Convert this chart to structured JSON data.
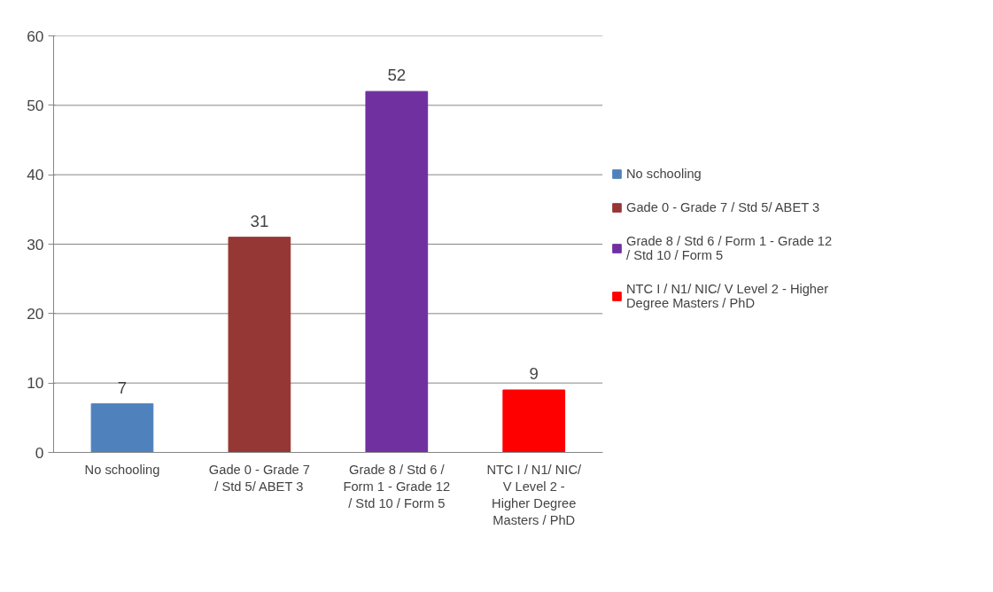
{
  "chart_data": {
    "type": "bar",
    "stacked": true,
    "categories": [
      "No schooling",
      "Gade 0 - Grade 7 / Std 5/ ABET 3",
      "Grade 8 / Std 6 / Form 1 - Grade 12 / Std 10 / Form 5",
      "NTC I / N1/ NIC/ V Level 2 - Higher Degree Masters / PhD"
    ],
    "series": [
      {
        "name": "No schooling",
        "color": "#4f81bd",
        "values": [
          7,
          null,
          null,
          null
        ]
      },
      {
        "name": "Gade 0 - Grade 7 / Std 5/ ABET 3",
        "color": "#953735",
        "values": [
          null,
          31,
          null,
          null
        ]
      },
      {
        "name": "Grade 8 / Std 6 / Form 1 - Grade 12 / Std 10 / Form 5",
        "color": "#7030a0",
        "values": [
          null,
          null,
          52,
          null
        ]
      },
      {
        "name": "NTC I / N1/ NIC/ V Level 2 - Higher Degree Masters / PhD",
        "color": "#ff0000",
        "values": [
          null,
          null,
          null,
          9
        ]
      }
    ],
    "ylim": [
      0,
      60
    ],
    "yticks": [
      0,
      10,
      20,
      30,
      40,
      50,
      60
    ],
    "grid": "y",
    "legend": "right",
    "data_labels": true
  }
}
